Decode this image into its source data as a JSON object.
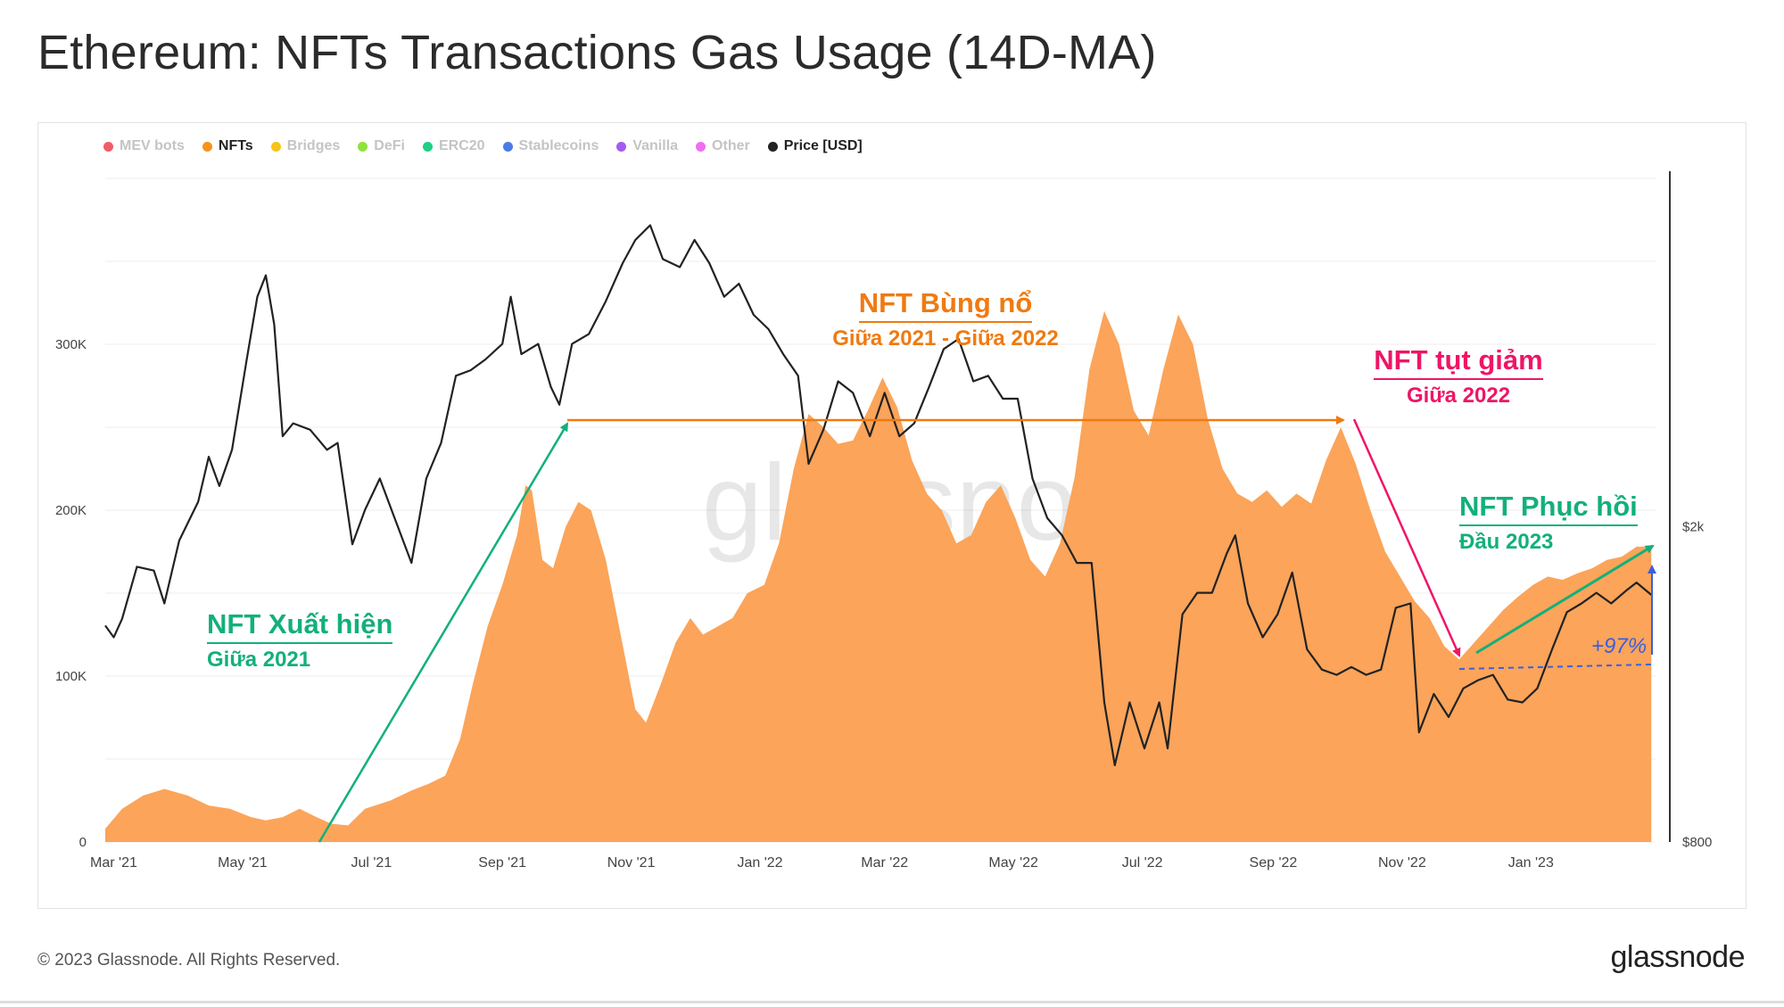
{
  "title": "Ethereum: NFTs Transactions Gas Usage (14D-MA)",
  "footer": {
    "copyright": "© 2023 Glassnode. All Rights Reserved.",
    "logo": "glassnode"
  },
  "watermark": "glassnode",
  "legend": [
    {
      "label": "MEV bots",
      "color": "#f25c67",
      "active": false
    },
    {
      "label": "NFTs",
      "color": "#f7931a",
      "active": true
    },
    {
      "label": "Bridges",
      "color": "#f5c518",
      "active": false
    },
    {
      "label": "DeFi",
      "color": "#8fe33a",
      "active": false
    },
    {
      "label": "ERC20",
      "color": "#1fcf85",
      "active": false
    },
    {
      "label": "Stablecoins",
      "color": "#4a7ce6",
      "active": false
    },
    {
      "label": "Vanilla",
      "color": "#a45cf0",
      "active": false
    },
    {
      "label": "Other",
      "color": "#f06ef0",
      "active": false
    },
    {
      "label": "Price [USD]",
      "color": "#222222",
      "active": true
    }
  ],
  "annotations": {
    "xuat_hien": {
      "heading": "NFT Xuất hiện",
      "sub": "Giữa 2021",
      "color": "#12b07a"
    },
    "bung_no": {
      "heading": "NFT Bùng nổ",
      "sub": "Giữa 2021 - Giữa 2022",
      "color": "#f07a10"
    },
    "tut_giam": {
      "heading": "NFT tụt giảm",
      "sub": "Giữa 2022",
      "color": "#ee1566"
    },
    "phuc_hoi": {
      "heading": "NFT Phục hồi",
      "sub": "Đầu 2023",
      "color": "#12b07a"
    },
    "pct": {
      "label": "+97%",
      "color": "#3b5fe0"
    }
  },
  "chart_data": {
    "type": "area",
    "x_ticks": [
      "Mar '21",
      "May '21",
      "Jul '21",
      "Sep '21",
      "Nov '21",
      "Jan '22",
      "Mar '22",
      "May '22",
      "Jul '22",
      "Sep '22",
      "Nov '22",
      "Jan '23"
    ],
    "y_left_ticks": [
      "0",
      "100K",
      "200K",
      "300K"
    ],
    "y_left_range": [
      0,
      400000
    ],
    "y_right_ticks": [
      "$800",
      "$2k"
    ],
    "y_right_scale": "log",
    "y_right_range": [
      800,
      5500
    ],
    "grid": true,
    "legend_position": "top-left",
    "series": [
      {
        "name": "NFTs",
        "color": "#f7931a",
        "fill": "#fba45a",
        "values": [
          [
            "2021-02-25",
            8000
          ],
          [
            "2021-03-05",
            20000
          ],
          [
            "2021-03-15",
            28000
          ],
          [
            "2021-03-25",
            32000
          ],
          [
            "2021-04-05",
            28000
          ],
          [
            "2021-04-15",
            22000
          ],
          [
            "2021-04-25",
            20000
          ],
          [
            "2021-05-05",
            15000
          ],
          [
            "2021-05-12",
            13000
          ],
          [
            "2021-05-20",
            15000
          ],
          [
            "2021-05-28",
            20000
          ],
          [
            "2021-06-05",
            15000
          ],
          [
            "2021-06-12",
            11000
          ],
          [
            "2021-06-20",
            10000
          ],
          [
            "2021-06-28",
            20000
          ],
          [
            "2021-07-10",
            25000
          ],
          [
            "2021-07-20",
            31000
          ],
          [
            "2021-07-28",
            35000
          ],
          [
            "2021-08-05",
            40000
          ],
          [
            "2021-08-12",
            62000
          ],
          [
            "2021-08-18",
            95000
          ],
          [
            "2021-08-25",
            130000
          ],
          [
            "2021-09-01",
            155000
          ],
          [
            "2021-09-08",
            185000
          ],
          [
            "2021-09-12",
            215000
          ],
          [
            "2021-09-15",
            212000
          ],
          [
            "2021-09-20",
            170000
          ],
          [
            "2021-09-25",
            165000
          ],
          [
            "2021-10-01",
            190000
          ],
          [
            "2021-10-07",
            205000
          ],
          [
            "2021-10-13",
            200000
          ],
          [
            "2021-10-20",
            170000
          ],
          [
            "2021-10-27",
            125000
          ],
          [
            "2021-11-03",
            80000
          ],
          [
            "2021-11-08",
            72000
          ],
          [
            "2021-11-15",
            95000
          ],
          [
            "2021-11-22",
            120000
          ],
          [
            "2021-11-29",
            135000
          ],
          [
            "2021-12-05",
            125000
          ],
          [
            "2021-12-12",
            130000
          ],
          [
            "2021-12-19",
            135000
          ],
          [
            "2021-12-26",
            150000
          ],
          [
            "2022-01-03",
            155000
          ],
          [
            "2022-01-10",
            180000
          ],
          [
            "2022-01-17",
            225000
          ],
          [
            "2022-01-24",
            258000
          ],
          [
            "2022-01-31",
            250000
          ],
          [
            "2022-02-07",
            240000
          ],
          [
            "2022-02-14",
            242000
          ],
          [
            "2022-02-21",
            260000
          ],
          [
            "2022-02-28",
            280000
          ],
          [
            "2022-03-07",
            262000
          ],
          [
            "2022-03-14",
            230000
          ],
          [
            "2022-03-21",
            210000
          ],
          [
            "2022-03-28",
            200000
          ],
          [
            "2022-04-04",
            180000
          ],
          [
            "2022-04-11",
            185000
          ],
          [
            "2022-04-18",
            205000
          ],
          [
            "2022-04-25",
            215000
          ],
          [
            "2022-05-02",
            195000
          ],
          [
            "2022-05-09",
            170000
          ],
          [
            "2022-05-16",
            160000
          ],
          [
            "2022-05-23",
            180000
          ],
          [
            "2022-05-30",
            220000
          ],
          [
            "2022-06-06",
            285000
          ],
          [
            "2022-06-13",
            320000
          ],
          [
            "2022-06-20",
            300000
          ],
          [
            "2022-06-27",
            260000
          ],
          [
            "2022-07-04",
            245000
          ],
          [
            "2022-07-11",
            285000
          ],
          [
            "2022-07-18",
            318000
          ],
          [
            "2022-07-25",
            300000
          ],
          [
            "2022-08-01",
            255000
          ],
          [
            "2022-08-08",
            225000
          ],
          [
            "2022-08-15",
            210000
          ],
          [
            "2022-08-22",
            205000
          ],
          [
            "2022-08-29",
            212000
          ],
          [
            "2022-09-05",
            202000
          ],
          [
            "2022-09-12",
            210000
          ],
          [
            "2022-09-19",
            204000
          ],
          [
            "2022-09-26",
            230000
          ],
          [
            "2022-10-03",
            250000
          ],
          [
            "2022-10-10",
            228000
          ],
          [
            "2022-10-17",
            200000
          ],
          [
            "2022-10-24",
            175000
          ],
          [
            "2022-10-31",
            160000
          ],
          [
            "2022-11-07",
            145000
          ],
          [
            "2022-11-14",
            135000
          ],
          [
            "2022-11-21",
            118000
          ],
          [
            "2022-11-28",
            110000
          ],
          [
            "2022-12-05",
            120000
          ],
          [
            "2022-12-12",
            130000
          ],
          [
            "2022-12-19",
            140000
          ],
          [
            "2022-12-26",
            148000
          ],
          [
            "2023-01-02",
            155000
          ],
          [
            "2023-01-09",
            160000
          ],
          [
            "2023-01-16",
            158000
          ],
          [
            "2023-01-23",
            162000
          ],
          [
            "2023-01-30",
            165000
          ],
          [
            "2023-02-06",
            170000
          ],
          [
            "2023-02-13",
            172000
          ],
          [
            "2023-02-20",
            178000
          ],
          [
            "2023-02-27",
            178000
          ]
        ]
      },
      {
        "name": "Price [USD]",
        "color": "#222222",
        "values": [
          [
            "2021-02-25",
            1500
          ],
          [
            "2021-03-01",
            1450
          ],
          [
            "2021-03-05",
            1530
          ],
          [
            "2021-03-12",
            1780
          ],
          [
            "2021-03-20",
            1760
          ],
          [
            "2021-03-25",
            1600
          ],
          [
            "2021-04-01",
            1920
          ],
          [
            "2021-04-10",
            2150
          ],
          [
            "2021-04-15",
            2450
          ],
          [
            "2021-04-20",
            2250
          ],
          [
            "2021-04-26",
            2500
          ],
          [
            "2021-05-03",
            3250
          ],
          [
            "2021-05-08",
            3900
          ],
          [
            "2021-05-12",
            4150
          ],
          [
            "2021-05-16",
            3600
          ],
          [
            "2021-05-20",
            2600
          ],
          [
            "2021-05-25",
            2700
          ],
          [
            "2021-06-02",
            2650
          ],
          [
            "2021-06-10",
            2500
          ],
          [
            "2021-06-15",
            2550
          ],
          [
            "2021-06-22",
            1900
          ],
          [
            "2021-06-28",
            2100
          ],
          [
            "2021-07-05",
            2300
          ],
          [
            "2021-07-12",
            2050
          ],
          [
            "2021-07-20",
            1800
          ],
          [
            "2021-07-27",
            2300
          ],
          [
            "2021-08-03",
            2550
          ],
          [
            "2021-08-10",
            3100
          ],
          [
            "2021-08-17",
            3150
          ],
          [
            "2021-08-24",
            3250
          ],
          [
            "2021-09-01",
            3400
          ],
          [
            "2021-09-05",
            3900
          ],
          [
            "2021-09-10",
            3300
          ],
          [
            "2021-09-18",
            3400
          ],
          [
            "2021-09-24",
            3000
          ],
          [
            "2021-09-28",
            2850
          ],
          [
            "2021-10-04",
            3400
          ],
          [
            "2021-10-12",
            3500
          ],
          [
            "2021-10-20",
            3850
          ],
          [
            "2021-10-28",
            4300
          ],
          [
            "2021-11-03",
            4600
          ],
          [
            "2021-11-10",
            4800
          ],
          [
            "2021-11-16",
            4350
          ],
          [
            "2021-11-24",
            4250
          ],
          [
            "2021-12-01",
            4600
          ],
          [
            "2021-12-08",
            4300
          ],
          [
            "2021-12-15",
            3900
          ],
          [
            "2021-12-22",
            4050
          ],
          [
            "2021-12-29",
            3700
          ],
          [
            "2022-01-05",
            3550
          ],
          [
            "2022-01-12",
            3300
          ],
          [
            "2022-01-19",
            3100
          ],
          [
            "2022-01-24",
            2400
          ],
          [
            "2022-01-31",
            2650
          ],
          [
            "2022-02-07",
            3050
          ],
          [
            "2022-02-14",
            2950
          ],
          [
            "2022-02-22",
            2600
          ],
          [
            "2022-03-01",
            2950
          ],
          [
            "2022-03-08",
            2600
          ],
          [
            "2022-03-15",
            2700
          ],
          [
            "2022-03-22",
            3000
          ],
          [
            "2022-03-29",
            3350
          ],
          [
            "2022-04-05",
            3450
          ],
          [
            "2022-04-12",
            3050
          ],
          [
            "2022-04-19",
            3100
          ],
          [
            "2022-04-26",
            2900
          ],
          [
            "2022-05-03",
            2900
          ],
          [
            "2022-05-10",
            2300
          ],
          [
            "2022-05-17",
            2050
          ],
          [
            "2022-05-24",
            1950
          ],
          [
            "2022-05-31",
            1800
          ],
          [
            "2022-06-07",
            1800
          ],
          [
            "2022-06-13",
            1200
          ],
          [
            "2022-06-18",
            1000
          ],
          [
            "2022-06-25",
            1200
          ],
          [
            "2022-07-02",
            1050
          ],
          [
            "2022-07-09",
            1200
          ],
          [
            "2022-07-13",
            1050
          ],
          [
            "2022-07-20",
            1550
          ],
          [
            "2022-07-27",
            1650
          ],
          [
            "2022-08-03",
            1650
          ],
          [
            "2022-08-10",
            1850
          ],
          [
            "2022-08-14",
            1950
          ],
          [
            "2022-08-20",
            1600
          ],
          [
            "2022-08-27",
            1450
          ],
          [
            "2022-09-03",
            1550
          ],
          [
            "2022-09-10",
            1750
          ],
          [
            "2022-09-17",
            1400
          ],
          [
            "2022-09-24",
            1320
          ],
          [
            "2022-10-01",
            1300
          ],
          [
            "2022-10-08",
            1330
          ],
          [
            "2022-10-15",
            1300
          ],
          [
            "2022-10-22",
            1320
          ],
          [
            "2022-10-29",
            1580
          ],
          [
            "2022-11-05",
            1600
          ],
          [
            "2022-11-09",
            1100
          ],
          [
            "2022-11-16",
            1230
          ],
          [
            "2022-11-23",
            1150
          ],
          [
            "2022-11-30",
            1250
          ],
          [
            "2022-12-07",
            1280
          ],
          [
            "2022-12-14",
            1300
          ],
          [
            "2022-12-21",
            1210
          ],
          [
            "2022-12-28",
            1200
          ],
          [
            "2023-01-04",
            1250
          ],
          [
            "2023-01-11",
            1400
          ],
          [
            "2023-01-18",
            1560
          ],
          [
            "2023-01-25",
            1600
          ],
          [
            "2023-02-01",
            1650
          ],
          [
            "2023-02-08",
            1600
          ],
          [
            "2023-02-15",
            1660
          ],
          [
            "2023-02-20",
            1700
          ],
          [
            "2023-02-27",
            1640
          ]
        ]
      }
    ]
  }
}
